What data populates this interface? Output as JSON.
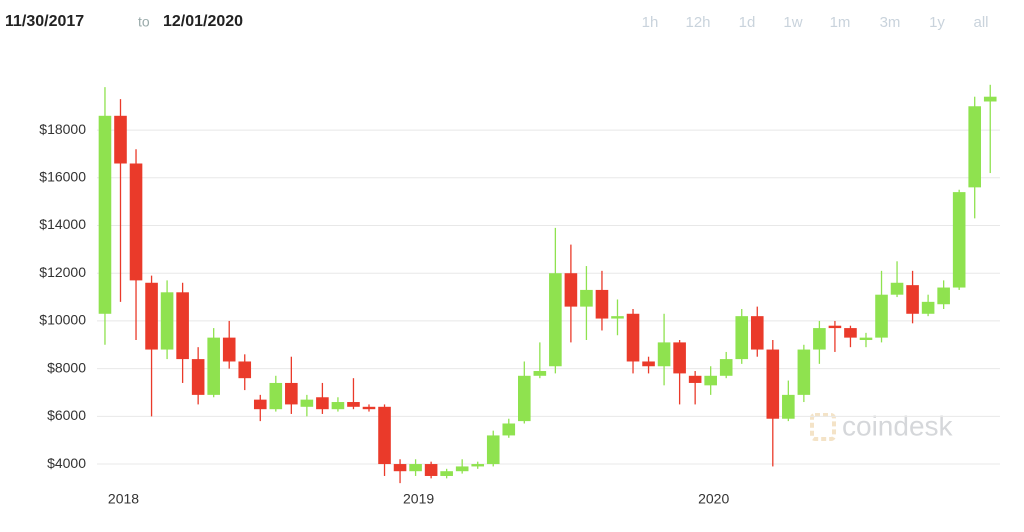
{
  "header": {
    "start_date": "11/30/2017",
    "separator": "to",
    "end_date": "12/01/2020",
    "ranges": [
      "1h",
      "12h",
      "1d",
      "1w",
      "1m",
      "3m",
      "1y",
      "all"
    ]
  },
  "watermark": "coindesk",
  "chart_data": {
    "type": "candlestick",
    "categories": [
      null,
      "2018",
      null,
      null,
      null,
      null,
      null,
      null,
      null,
      null,
      null,
      null,
      null,
      null,
      null,
      null,
      null,
      null,
      null,
      null,
      "2019",
      null,
      null,
      null,
      null,
      null,
      null,
      null,
      null,
      null,
      null,
      null,
      null,
      null,
      null,
      null,
      null,
      null,
      null,
      "2020",
      null,
      null,
      null,
      null,
      null,
      null,
      null,
      null,
      null,
      null,
      null,
      null,
      null,
      null,
      null,
      null,
      null,
      null
    ],
    "open": [
      10300,
      18600,
      16600,
      11600,
      8800,
      11200,
      8400,
      6900,
      9300,
      8300,
      6700,
      6300,
      7400,
      6400,
      6800,
      6300,
      6600,
      6400,
      6400,
      4000,
      3700,
      4000,
      3500,
      3700,
      3900,
      4000,
      5200,
      5800,
      7700,
      8100,
      12000,
      10600,
      11300,
      10100,
      10300,
      8300,
      8100,
      9100,
      7700,
      7300,
      7700,
      8400,
      10200,
      8800,
      5900,
      6900,
      8800,
      9800,
      9700,
      9200,
      9300,
      11100,
      11500,
      10300,
      10700,
      11400,
      15600,
      19200
    ],
    "high": [
      19800,
      19300,
      17200,
      11900,
      11700,
      11600,
      8900,
      9700,
      10000,
      8600,
      6900,
      7700,
      8500,
      6900,
      7400,
      6800,
      7600,
      6500,
      6500,
      4200,
      4200,
      4100,
      3800,
      4200,
      4100,
      5400,
      5900,
      8300,
      9100,
      13900,
      13200,
      12300,
      12100,
      10900,
      10500,
      8500,
      10300,
      9200,
      7900,
      8100,
      8700,
      10500,
      10600,
      9200,
      7500,
      9000,
      10000,
      10000,
      9800,
      9500,
      12100,
      12500,
      12100,
      11100,
      11700,
      15500,
      19400,
      19900
    ],
    "low": [
      9000,
      10800,
      9200,
      6000,
      8400,
      7400,
      6500,
      6800,
      8000,
      7100,
      5800,
      6200,
      6100,
      6000,
      6100,
      6200,
      6300,
      6200,
      3500,
      3200,
      3500,
      3400,
      3400,
      3600,
      3800,
      3900,
      5100,
      5700,
      7600,
      7800,
      9100,
      9200,
      9600,
      9400,
      7800,
      7800,
      7300,
      6500,
      6500,
      6900,
      7600,
      8200,
      8500,
      3900,
      5800,
      6600,
      8200,
      8700,
      8900,
      8900,
      9100,
      11000,
      9900,
      10200,
      10500,
      11300,
      14300,
      16200
    ],
    "close": [
      18600,
      16600,
      11700,
      8800,
      11200,
      8400,
      6900,
      9300,
      8300,
      7600,
      6300,
      7400,
      6500,
      6700,
      6300,
      6600,
      6400,
      6300,
      4000,
      3700,
      4000,
      3500,
      3700,
      3900,
      4000,
      5200,
      5700,
      7700,
      7900,
      12000,
      10600,
      11300,
      10100,
      10200,
      8300,
      8100,
      9100,
      7800,
      7400,
      7700,
      8400,
      10200,
      8800,
      5900,
      6900,
      8800,
      9700,
      9700,
      9300,
      9300,
      11100,
      11600,
      10300,
      10800,
      11400,
      15400,
      19000,
      19400
    ],
    "up_color": "#8fe24f",
    "down_color": "#ea3a2a",
    "ylim": [
      3000,
      20000
    ],
    "yticks": [
      {
        "value": 4000,
        "label": "$4000"
      },
      {
        "value": 6000,
        "label": "$6000"
      },
      {
        "value": 8000,
        "label": "$8000"
      },
      {
        "value": 10000,
        "label": "$10000"
      },
      {
        "value": 12000,
        "label": "$12000"
      },
      {
        "value": 14000,
        "label": "$14000"
      },
      {
        "value": 16000,
        "label": "$16000"
      },
      {
        "value": 18000,
        "label": "$18000"
      }
    ],
    "grid": true
  }
}
